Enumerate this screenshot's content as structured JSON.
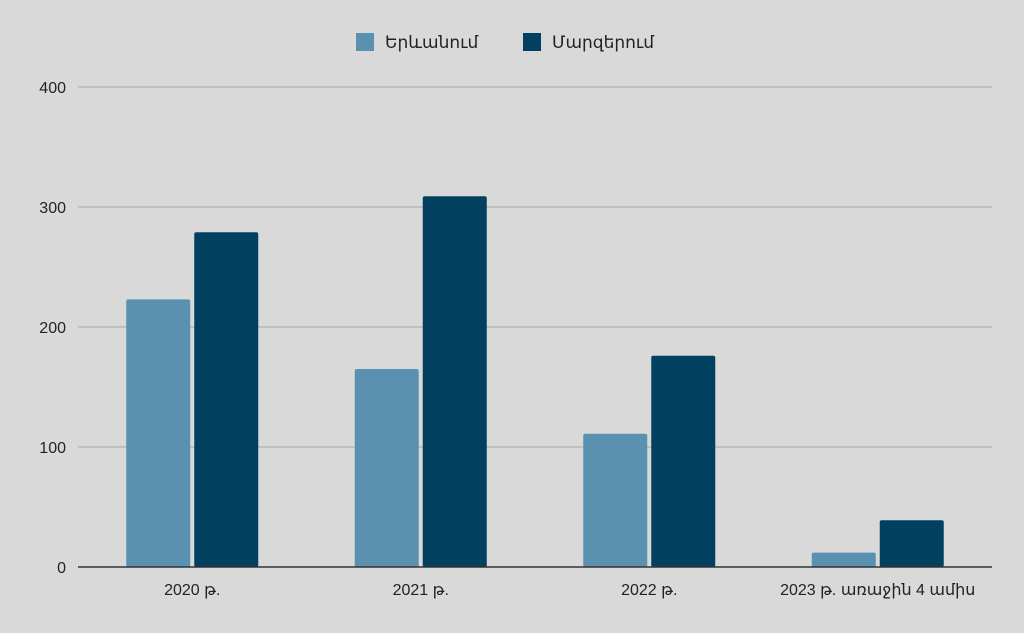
{
  "chart_data": {
    "type": "bar",
    "categories": [
      "2020 թ.",
      "2021 թ.",
      "2022 թ.",
      "2023 թ. առաջին 4 ամիս"
    ],
    "series": [
      {
        "name": "Երևանում",
        "values": [
          223,
          165,
          111,
          12
        ],
        "color": "#5a91b1"
      },
      {
        "name": "Մարզերում",
        "values": [
          279,
          309,
          176,
          39
        ],
        "color": "#02405f"
      }
    ],
    "title": "",
    "xlabel": "",
    "ylabel": "",
    "ylim": [
      0,
      400
    ],
    "yticks": [
      "0",
      "100",
      "200",
      "300",
      "400"
    ],
    "grid": true,
    "legend_position": "top-center"
  },
  "colors": {
    "background": "#d9d9d9",
    "gridline": "#a6a6a6",
    "axis": "#333333"
  }
}
